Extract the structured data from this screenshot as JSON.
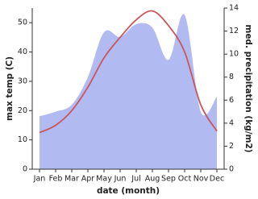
{
  "chart_data": {
    "type": "line-area",
    "categories": [
      "Jan",
      "Feb",
      "Mar",
      "Apr",
      "May",
      "Jun",
      "Jul",
      "Aug",
      "Sep",
      "Oct",
      "Nov",
      "Dec"
    ],
    "x_label": "date (month)",
    "y_label": "max temp (C)",
    "y2_label": "med. precipitation (kg/m2)",
    "ylim": [
      0,
      55
    ],
    "yticks": [
      0,
      10,
      20,
      30,
      40,
      50
    ],
    "y2lim": [
      0,
      14
    ],
    "y2ticks": [
      0,
      2,
      4,
      6,
      8,
      10,
      12,
      14
    ],
    "series": [
      {
        "name": "med. precipitation",
        "type": "area",
        "axis": "y2",
        "color": "#b2baf2",
        "values": [
          4.6,
          5.0,
          5.6,
          8.0,
          11.9,
          11.5,
          12.6,
          12.3,
          9.5,
          13.4,
          5.0,
          6.3
        ]
      },
      {
        "name": "max temp",
        "type": "line",
        "axis": "y",
        "color": "#c9565a",
        "values": [
          12.5,
          15,
          20,
          28,
          38,
          45,
          51,
          54,
          49,
          40,
          22,
          13
        ]
      }
    ]
  }
}
